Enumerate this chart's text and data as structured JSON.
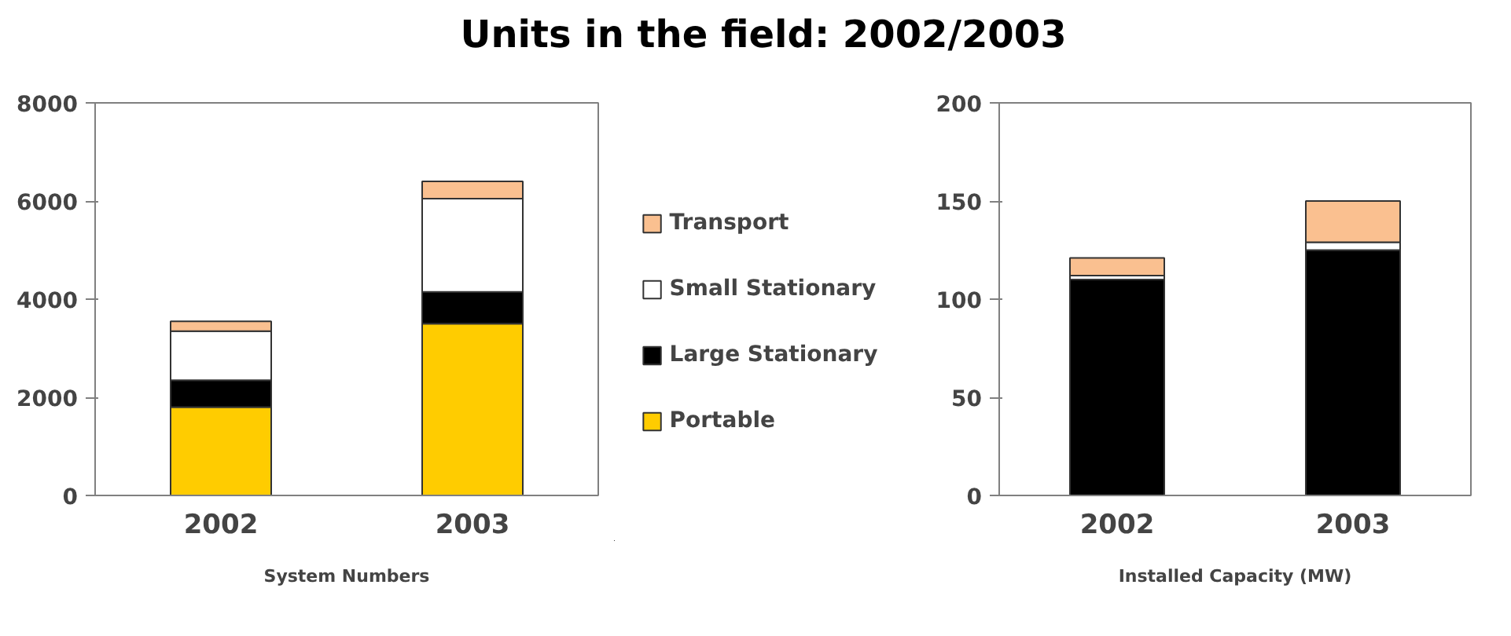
{
  "chart_data": [
    {
      "type": "bar",
      "title": "Units in the field: 2002/2003",
      "xlabel": "System Numbers",
      "categories": [
        "2002",
        "2003"
      ],
      "stacked": true,
      "legend": "right",
      "grid": false,
      "ylim": [
        0,
        8000
      ],
      "yticks": [
        0,
        2000,
        4000,
        6000,
        8000
      ],
      "series": [
        {
          "name": "Portable",
          "color": "#ffcc00",
          "values": [
            1800,
            3500
          ]
        },
        {
          "name": "Large Stationary",
          "color": "#000000",
          "values": [
            550,
            650
          ]
        },
        {
          "name": "Small Stationary",
          "color": "#ffffff",
          "values": [
            1000,
            1900
          ]
        },
        {
          "name": "Transport",
          "color": "#fac090",
          "values": [
            200,
            350
          ]
        }
      ]
    },
    {
      "type": "bar",
      "xlabel": "Installed Capacity (MW)",
      "categories": [
        "2002",
        "2003"
      ],
      "stacked": true,
      "grid": false,
      "ylim": [
        0,
        200
      ],
      "yticks": [
        0,
        50,
        100,
        150,
        200
      ],
      "series": [
        {
          "color": "#000000",
          "values": [
            110,
            125
          ]
        },
        {
          "color": "#ffffff",
          "values": [
            2,
            4
          ]
        },
        {
          "color": "#fac090",
          "values": [
            9,
            21
          ]
        }
      ]
    }
  ]
}
